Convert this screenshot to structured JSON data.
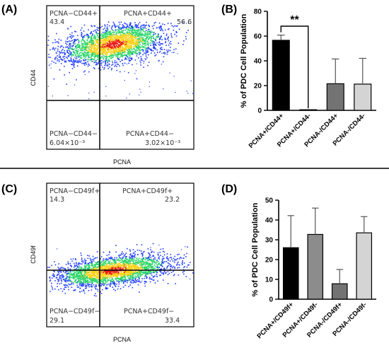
{
  "panels": {
    "A": "(A)",
    "B": "(B)",
    "C": "(C)",
    "D": "(D)"
  },
  "colors": {
    "bar_black": "#000000",
    "bar_mid_gray": "#8c8c8c",
    "bar_dark_gray": "#737373",
    "bar_light_gray": "#d4d4d4",
    "density_low": "#1f3cff",
    "density_mid": "#2dd66a",
    "density_high": "#ffd21a",
    "density_peak": "#e8201a"
  },
  "chart_data": [
    {
      "panel": "A",
      "type": "scatter",
      "xlabel": "PCNA",
      "ylabel": "CD44",
      "grid": false,
      "quadrants": [
        {
          "position": "upper-left",
          "label": "PCNA−CD44+",
          "value": "43.4"
        },
        {
          "position": "upper-right",
          "label": "PCNA+CD44+",
          "value": "56.6"
        },
        {
          "position": "lower-left",
          "label": "PCNA−CD44−",
          "value": "6.04×10⁻³"
        },
        {
          "position": "lower-right",
          "label": "PCNA+CD44−",
          "value": "3.02×10⁻³"
        }
      ]
    },
    {
      "panel": "B",
      "type": "bar",
      "ylabel": "% of PDC Cell Population",
      "ylim": [
        0,
        80
      ],
      "yticks": [
        0,
        20,
        40,
        60,
        80
      ],
      "categories": [
        "PCNA+/CD44+",
        "PCNA+/CD44-",
        "PCNA-/CD44+",
        "PCNA-/CD44-"
      ],
      "values": [
        56.6,
        0.5,
        21.5,
        21.2
      ],
      "errors": [
        4.2,
        0.0,
        20.0,
        20.8
      ],
      "fills": [
        "bar_black",
        "bar_mid_gray",
        "bar_dark_gray",
        "bar_light_gray"
      ],
      "significance": {
        "from": 0,
        "to": 1,
        "label": "**"
      }
    },
    {
      "panel": "C",
      "type": "scatter",
      "xlabel": "PCNA",
      "ylabel": "CD49f",
      "grid": false,
      "quadrants": [
        {
          "position": "upper-left",
          "label": "PCNA−CD49f+",
          "value": "14.3"
        },
        {
          "position": "upper-right",
          "label": "PCNA+CD49f+",
          "value": "23.2"
        },
        {
          "position": "lower-left",
          "label": "PCNA−CD49f−",
          "value": "29.1"
        },
        {
          "position": "lower-right",
          "label": "PCNA+CD49f−",
          "value": "33.4"
        }
      ]
    },
    {
      "panel": "D",
      "type": "bar",
      "ylabel": "% of PDC Cell Population",
      "ylim": [
        0,
        50
      ],
      "yticks": [
        0,
        10,
        20,
        30,
        40,
        50
      ],
      "categories": [
        "PCNA+/CD49f+",
        "PCNA+/CD49f-",
        "PCNA-/CD49f+",
        "PCNA-/CD49f-"
      ],
      "values": [
        26.0,
        32.7,
        7.8,
        33.5
      ],
      "errors": [
        16.2,
        13.3,
        7.2,
        8.2
      ],
      "fills": [
        "bar_black",
        "bar_mid_gray",
        "bar_dark_gray",
        "bar_light_gray"
      ]
    }
  ]
}
